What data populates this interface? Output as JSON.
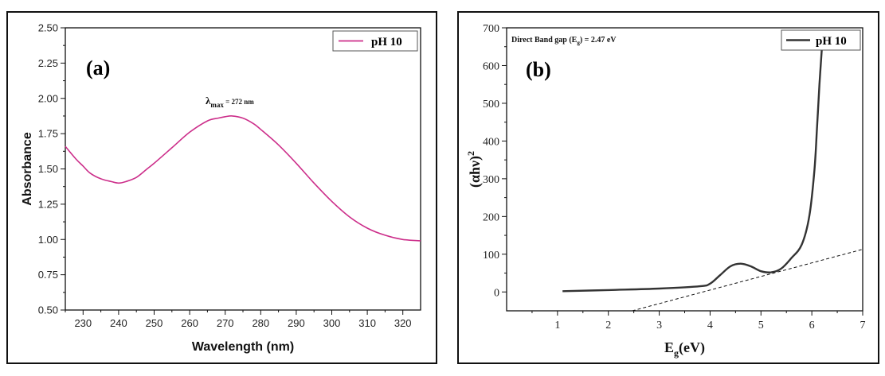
{
  "chart_data": [
    {
      "type": "line",
      "panel_label": "(a)",
      "xlabel": "Wavelength (nm)",
      "ylabel": "Absorbance",
      "xlim": [
        225,
        325
      ],
      "ylim": [
        0.5,
        2.5
      ],
      "x_ticks": [
        "230",
        "240",
        "250",
        "260",
        "270",
        "280",
        "290",
        "300",
        "310",
        "320"
      ],
      "y_ticks": [
        "0.50",
        "0.75",
        "1.00",
        "1.25",
        "1.50",
        "1.75",
        "2.00",
        "2.25",
        "2.50"
      ],
      "legend_position": "top-right",
      "annotation": {
        "lambda": "λ",
        "sub": "max",
        "text": " = 272 nm"
      },
      "series": [
        {
          "name": "pH 10",
          "color": "#cc2e8a",
          "x": [
            225,
            228,
            230,
            232,
            235,
            238,
            240,
            242,
            245,
            248,
            250,
            255,
            260,
            265,
            268,
            270,
            272,
            275,
            278,
            280,
            285,
            290,
            295,
            300,
            305,
            310,
            315,
            320,
            325
          ],
          "y": [
            1.66,
            1.57,
            1.52,
            1.47,
            1.43,
            1.41,
            1.4,
            1.41,
            1.44,
            1.5,
            1.54,
            1.65,
            1.76,
            1.84,
            1.86,
            1.87,
            1.875,
            1.86,
            1.82,
            1.78,
            1.67,
            1.54,
            1.4,
            1.27,
            1.16,
            1.08,
            1.03,
            1.0,
            0.99
          ]
        }
      ]
    },
    {
      "type": "line",
      "panel_label": "(b)",
      "xlabel_main": "E",
      "xlabel_sub": "g",
      "xlabel_rest": "(eV)",
      "ylabel_main": "(αhν)",
      "ylabel_sup": "2",
      "xlim": [
        0,
        7
      ],
      "ylim": [
        -50,
        700
      ],
      "x_ticks": [
        "1",
        "2",
        "3",
        "4",
        "5",
        "6",
        "7"
      ],
      "y_ticks": [
        "0",
        "100",
        "200",
        "300",
        "400",
        "500",
        "600",
        "700"
      ],
      "legend_position": "top-right",
      "annotation": {
        "pre": "Direct Band gap (E",
        "sub": "g",
        "post": ") = 2.47 eV"
      },
      "series": [
        {
          "name": "pH 10",
          "color": "#333333",
          "x": [
            1.1,
            2.0,
            3.0,
            3.8,
            4.0,
            4.2,
            4.4,
            4.6,
            4.8,
            5.0,
            5.2,
            5.4,
            5.6,
            5.8,
            5.95,
            6.05,
            6.1,
            6.15,
            6.2
          ],
          "y": [
            2,
            5,
            9,
            15,
            22,
            45,
            68,
            75,
            68,
            55,
            52,
            62,
            90,
            125,
            200,
            320,
            430,
            550,
            650
          ]
        },
        {
          "name": "",
          "dashed": true,
          "color": "#111111",
          "x": [
            2.47,
            7.0
          ],
          "y": [
            -50,
            113
          ]
        }
      ]
    }
  ]
}
